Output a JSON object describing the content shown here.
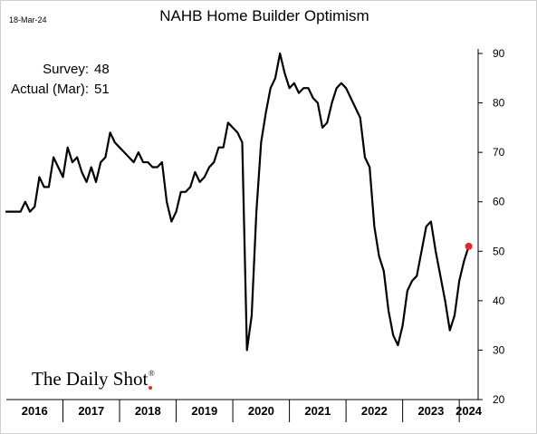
{
  "header": {
    "date": "18-Mar-24",
    "title": "NAHB Home Builder Optimism"
  },
  "annotations": {
    "survey_label": "Survey:",
    "survey_value": "48",
    "actual_label": "Actual (Mar):",
    "actual_value": "51"
  },
  "brand": {
    "name": "The Daily Shot",
    "mark": "®"
  },
  "colors": {
    "line": "#000000",
    "marker": "#e8262a",
    "brand_dot": "#e8262a",
    "axis": "#000000",
    "frame": "#cfcfcf"
  },
  "chart_data": {
    "type": "line",
    "title": "NAHB Home Builder Optimism",
    "xlabel": "",
    "ylabel": "",
    "ylim": [
      20,
      90
    ],
    "yticks": [
      "20",
      "30",
      "40",
      "50",
      "60",
      "70",
      "80",
      "90"
    ],
    "y_axis_side": "right",
    "grid": false,
    "legend": "none",
    "x_tick_labels": [
      "2016",
      "2017",
      "2018",
      "2019",
      "2020",
      "2021",
      "2022",
      "2023",
      "2024"
    ],
    "x_start": "2016-01",
    "x_end": "2024-03",
    "series": [
      {
        "x": [
          "2016-01",
          "2016-02",
          "2016-03",
          "2016-04",
          "2016-05",
          "2016-06",
          "2016-07",
          "2016-08",
          "2016-09",
          "2016-10",
          "2016-11",
          "2016-12",
          "2017-01",
          "2017-02",
          "2017-03",
          "2017-04",
          "2017-05",
          "2017-06",
          "2017-07",
          "2017-08",
          "2017-09",
          "2017-10",
          "2017-11",
          "2017-12",
          "2018-01",
          "2018-02",
          "2018-03",
          "2018-04",
          "2018-05",
          "2018-06",
          "2018-07",
          "2018-08",
          "2018-09",
          "2018-10",
          "2018-11",
          "2018-12",
          "2019-01",
          "2019-02",
          "2019-03",
          "2019-04",
          "2019-05",
          "2019-06",
          "2019-07",
          "2019-08",
          "2019-09",
          "2019-10",
          "2019-11",
          "2019-12",
          "2020-01",
          "2020-02",
          "2020-03",
          "2020-04",
          "2020-05",
          "2020-06",
          "2020-07",
          "2020-08",
          "2020-09",
          "2020-10",
          "2020-11",
          "2020-12",
          "2021-01",
          "2021-02",
          "2021-03",
          "2021-04",
          "2021-05",
          "2021-06",
          "2021-07",
          "2021-08",
          "2021-09",
          "2021-10",
          "2021-11",
          "2021-12",
          "2022-01",
          "2022-02",
          "2022-03",
          "2022-04",
          "2022-05",
          "2022-06",
          "2022-07",
          "2022-08",
          "2022-09",
          "2022-10",
          "2022-11",
          "2022-12",
          "2023-01",
          "2023-02",
          "2023-03",
          "2023-04",
          "2023-05",
          "2023-06",
          "2023-07",
          "2023-08",
          "2023-09",
          "2023-10",
          "2023-11",
          "2023-12",
          "2024-01",
          "2024-02",
          "2024-03"
        ],
        "values": [
          58,
          58,
          58,
          58,
          60,
          58,
          59,
          65,
          63,
          63,
          69,
          67,
          65,
          71,
          68,
          69,
          66,
          64,
          67,
          64,
          68,
          69,
          74,
          72,
          71,
          70,
          69,
          68,
          70,
          68,
          68,
          67,
          67,
          68,
          60,
          56,
          58,
          62,
          62,
          63,
          66,
          64,
          65,
          67,
          68,
          71,
          71,
          76,
          75,
          74,
          72,
          30,
          37,
          58,
          72,
          78,
          83,
          85,
          90,
          86,
          83,
          84,
          82,
          83,
          83,
          81,
          80,
          75,
          76,
          80,
          83,
          84,
          83,
          81,
          79,
          77,
          69,
          67,
          55,
          49,
          46,
          38,
          33,
          31,
          35,
          42,
          44,
          45,
          50,
          55,
          56,
          50,
          45,
          40,
          34,
          37,
          44,
          48,
          51
        ],
        "highlight_last": true
      }
    ]
  }
}
